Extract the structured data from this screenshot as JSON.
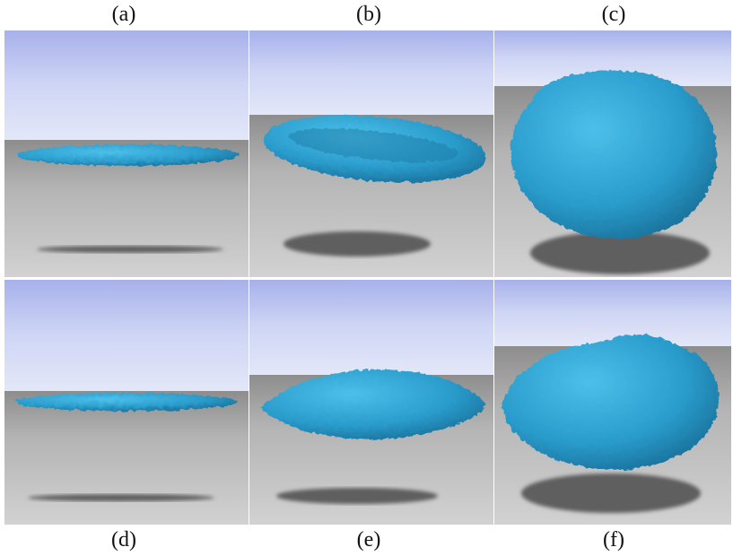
{
  "labels": {
    "a": "(a)",
    "b": "(b)",
    "c": "(c)",
    "d": "(d)",
    "e": "(e)",
    "f": "(f)"
  },
  "colors": {
    "sky_top": "#aab3e8",
    "sky_bottom": "#dfe4f7",
    "ground_top": "#9a9a9a",
    "ground_bottom": "#c9c9c9",
    "body": "#2fa6d6",
    "body_dark": "#1a6f99",
    "shadow": "#5e5e5e"
  }
}
